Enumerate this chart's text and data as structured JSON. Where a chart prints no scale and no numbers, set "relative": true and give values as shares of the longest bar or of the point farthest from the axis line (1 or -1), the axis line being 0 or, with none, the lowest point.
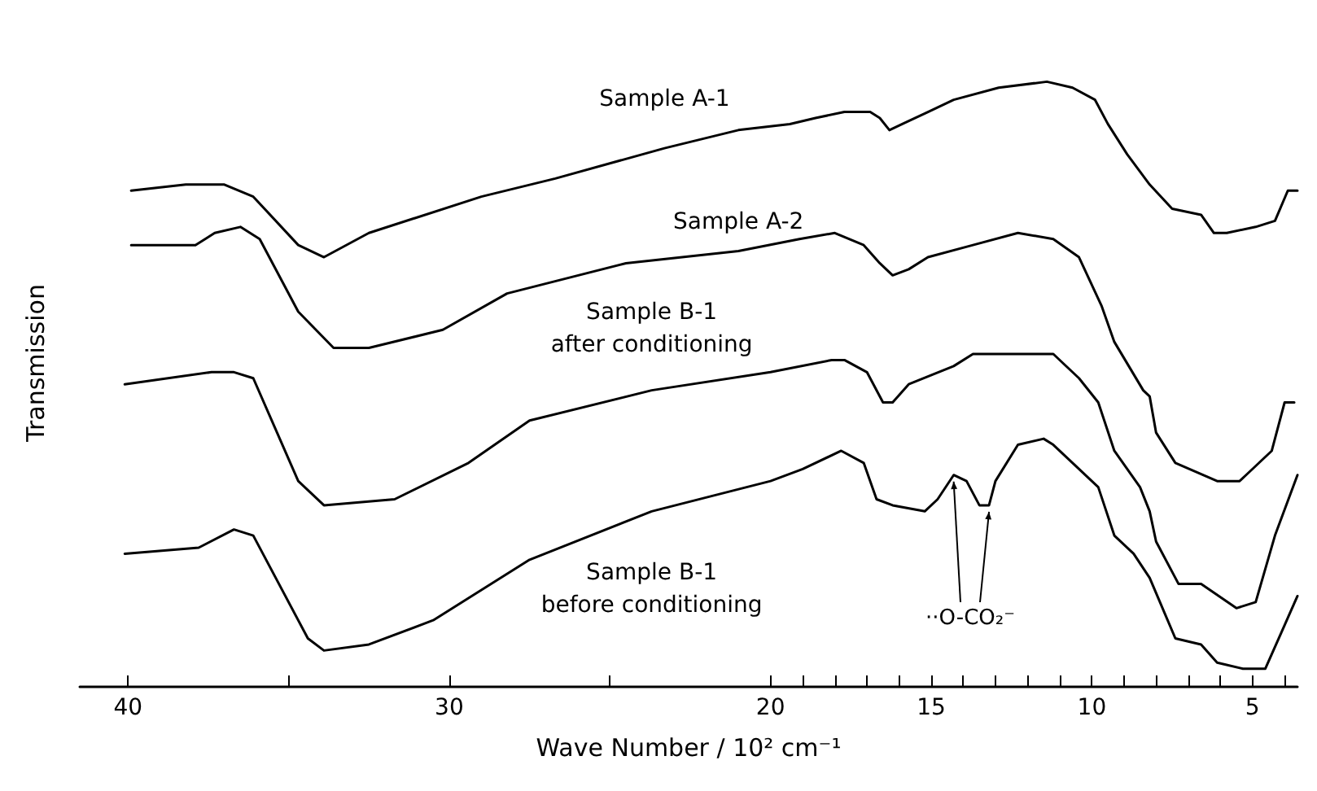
{
  "chart_data": {
    "type": "line",
    "relative": true,
    "xlabel": "Wave Number / 10² cm⁻¹",
    "ylabel": "Transmission",
    "xlim": [
      41.5,
      3.6
    ],
    "xticks": [
      40,
      {
        "value": 35,
        "label": null
      },
      30,
      {
        "value": 25,
        "label": null
      },
      20,
      {
        "value": 19,
        "label": null
      },
      {
        "value": 18,
        "label": null
      },
      {
        "value": 17,
        "label": null
      },
      {
        "value": 16,
        "label": null
      },
      15,
      {
        "value": 14,
        "label": null
      },
      {
        "value": 13,
        "label": null
      },
      {
        "value": 12,
        "label": null
      },
      {
        "value": 11,
        "label": null
      },
      10,
      {
        "value": 9,
        "label": null
      },
      {
        "value": 8,
        "label": null
      },
      {
        "value": 7,
        "label": null
      },
      {
        "value": 6,
        "label": null
      },
      5,
      {
        "value": 4,
        "label": null
      }
    ],
    "series": [
      {
        "name": "Sample A-1",
        "color": "#000000",
        "x": [
          39.9,
          38.2,
          37.0,
          36.1,
          34.7,
          33.9,
          32.5,
          29.0,
          26.7,
          23.3,
          21.0,
          19.4,
          18.6,
          17.7,
          16.9,
          16.6,
          16.3,
          15.9,
          15.1,
          14.3,
          12.9,
          11.4,
          10.6,
          9.9,
          9.5,
          8.9,
          8.2,
          7.5,
          6.6,
          6.2,
          5.8,
          4.9,
          4.3,
          3.9,
          3.6
        ],
        "values": [
          0.82,
          0.83,
          0.83,
          0.81,
          0.73,
          0.71,
          0.75,
          0.81,
          0.84,
          0.89,
          0.92,
          0.93,
          0.94,
          0.95,
          0.95,
          0.94,
          0.92,
          0.93,
          0.95,
          0.97,
          0.99,
          1.0,
          0.99,
          0.97,
          0.93,
          0.88,
          0.83,
          0.79,
          0.78,
          0.75,
          0.75,
          0.76,
          0.77,
          0.82,
          0.82
        ]
      },
      {
        "name": "Sample A-2",
        "color": "#000000",
        "x": [
          39.9,
          37.9,
          37.3,
          36.5,
          35.9,
          34.7,
          33.6,
          32.5,
          30.2,
          28.2,
          24.5,
          21.0,
          19.1,
          18.0,
          17.1,
          16.6,
          16.2,
          15.7,
          15.1,
          13.7,
          12.3,
          11.2,
          10.4,
          9.7,
          9.3,
          8.4,
          8.2,
          8.0,
          7.4,
          6.1,
          5.4,
          5.2,
          4.4,
          4.0,
          3.7
        ],
        "values": [
          0.73,
          0.73,
          0.75,
          0.76,
          0.74,
          0.62,
          0.56,
          0.56,
          0.59,
          0.65,
          0.7,
          0.72,
          0.74,
          0.75,
          0.73,
          0.7,
          0.68,
          0.69,
          0.71,
          0.73,
          0.75,
          0.74,
          0.71,
          0.63,
          0.57,
          0.49,
          0.48,
          0.42,
          0.37,
          0.34,
          0.34,
          0.35,
          0.39,
          0.47,
          0.47
        ]
      },
      {
        "name": "Sample B-1\nafter conditioning",
        "color": "#000000",
        "x": [
          40.1,
          37.4,
          36.7,
          36.1,
          34.7,
          33.9,
          31.7,
          29.4,
          27.5,
          23.7,
          20.0,
          18.1,
          17.7,
          17.0,
          16.5,
          16.2,
          15.7,
          14.3,
          13.7,
          11.2,
          10.4,
          9.8,
          9.3,
          8.5,
          8.2,
          8.0,
          7.3,
          6.6,
          5.5,
          4.9,
          4.3,
          3.6
        ],
        "values": [
          0.5,
          0.52,
          0.52,
          0.51,
          0.34,
          0.3,
          0.31,
          0.37,
          0.44,
          0.49,
          0.52,
          0.54,
          0.54,
          0.52,
          0.47,
          0.47,
          0.5,
          0.53,
          0.55,
          0.55,
          0.51,
          0.47,
          0.39,
          0.33,
          0.29,
          0.24,
          0.17,
          0.17,
          0.13,
          0.14,
          0.25,
          0.35
        ]
      },
      {
        "name": "Sample B-1\nbefore conditioning",
        "color": "#000000",
        "x": [
          40.1,
          37.8,
          36.7,
          36.1,
          34.4,
          33.9,
          32.5,
          30.5,
          27.5,
          23.7,
          20.0,
          19.0,
          17.8,
          17.1,
          16.7,
          16.2,
          15.2,
          14.8,
          14.3,
          13.9,
          13.5,
          13.2,
          13.0,
          12.3,
          11.5,
          11.2,
          10.6,
          9.8,
          9.3,
          8.7,
          8.2,
          7.4,
          6.6,
          6.1,
          5.3,
          4.6,
          4.1,
          3.6
        ],
        "values": [
          0.22,
          0.23,
          0.26,
          0.25,
          0.08,
          0.06,
          0.07,
          0.11,
          0.21,
          0.29,
          0.34,
          0.36,
          0.39,
          0.37,
          0.31,
          0.3,
          0.29,
          0.31,
          0.35,
          0.34,
          0.3,
          0.3,
          0.34,
          0.4,
          0.41,
          0.4,
          0.37,
          0.33,
          0.25,
          0.22,
          0.18,
          0.08,
          0.07,
          0.04,
          0.03,
          0.03,
          0.09,
          0.15
        ]
      }
    ],
    "annotations": [
      "··O-CO₂⁻"
    ]
  }
}
